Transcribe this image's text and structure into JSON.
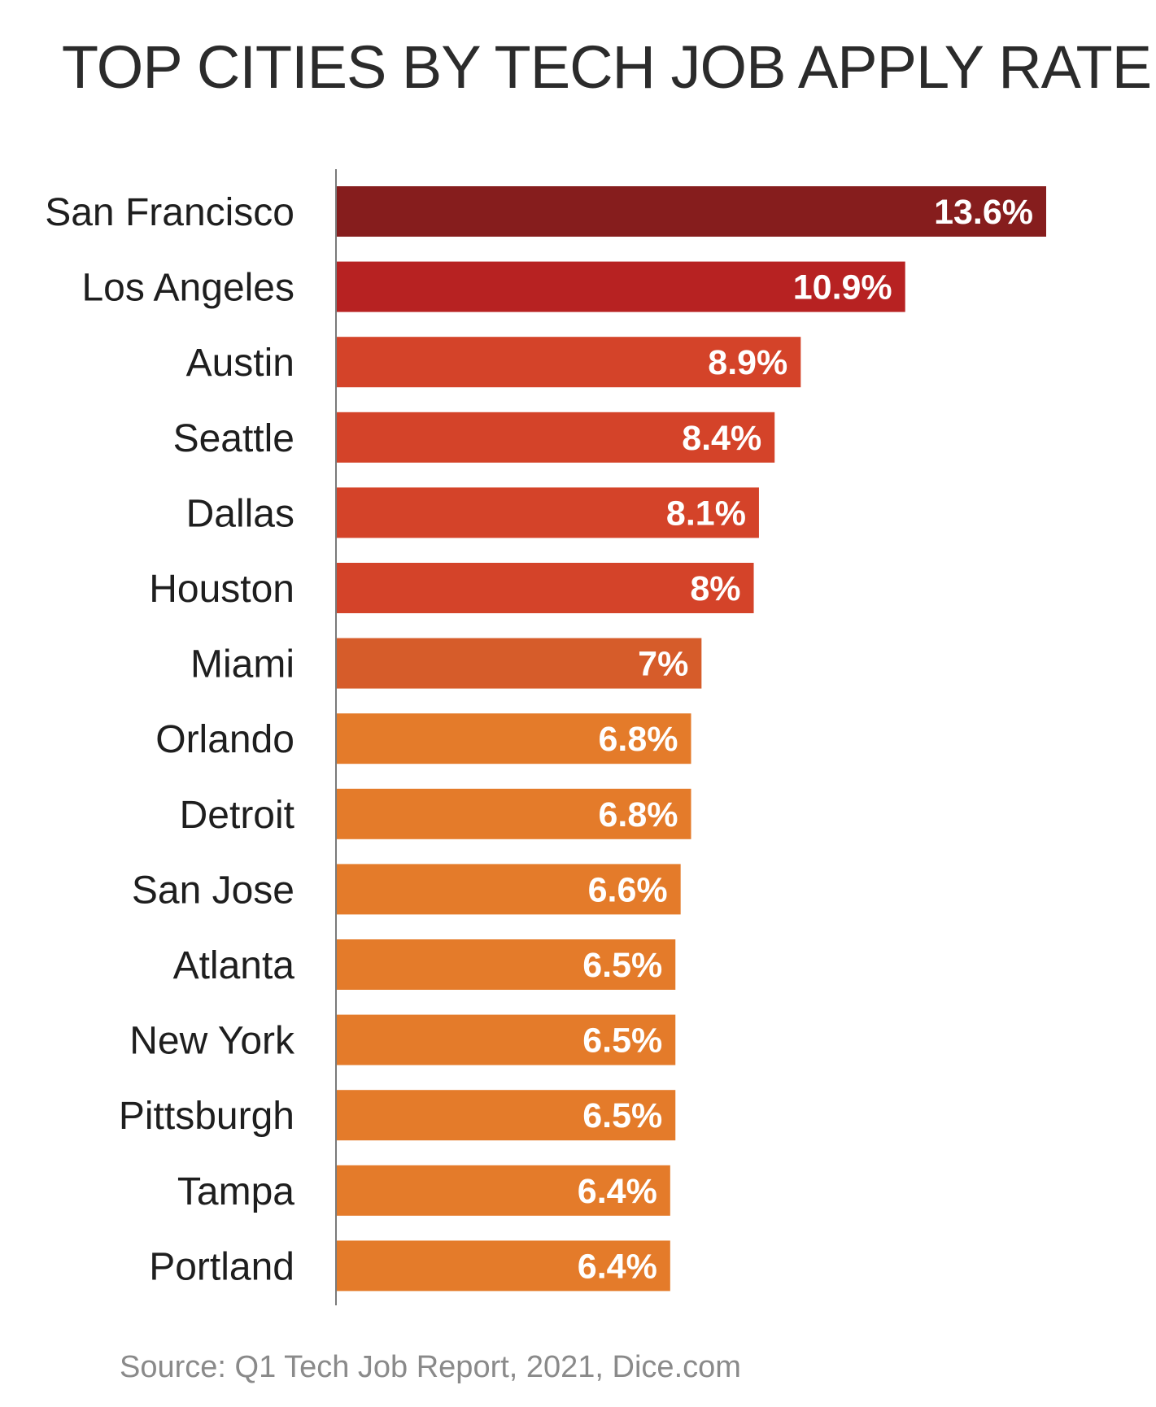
{
  "chart_data": {
    "type": "bar",
    "orientation": "horizontal",
    "title": "TOP CITIES BY TECH JOB APPLY RATE",
    "source": "Source: Q1 Tech Job Report, 2021, Dice.com",
    "categories": [
      "San Francisco",
      "Los Angeles",
      "Austin",
      "Seattle",
      "Dallas",
      "Houston",
      "Miami",
      "Orlando",
      "Detroit",
      "San Jose",
      "Atlanta",
      "New York",
      "Pittsburgh",
      "Tampa",
      "Portland"
    ],
    "values": [
      13.6,
      10.9,
      8.9,
      8.4,
      8.1,
      8,
      7,
      6.8,
      6.8,
      6.6,
      6.5,
      6.5,
      6.5,
      6.4,
      6.4
    ],
    "value_labels": [
      "13.6%",
      "10.9%",
      "8.9%",
      "8.4%",
      "8.1%",
      "8%",
      "7%",
      "6.8%",
      "6.8%",
      "6.6%",
      "6.5%",
      "6.5%",
      "6.5%",
      "6.4%",
      "6.4%"
    ],
    "colors": [
      "#861d1d",
      "#b72222",
      "#d44329",
      "#d44329",
      "#d44329",
      "#d44329",
      "#d65c2a",
      "#e47b2a",
      "#e47b2a",
      "#e47b2a",
      "#e47b2a",
      "#e47b2a",
      "#e47b2a",
      "#e47b2a",
      "#e47b2a"
    ],
    "axis_color": "#7a7a7a",
    "label_color": "#1e1e1e",
    "value_label_color": "#ffffff",
    "xlim": [
      0,
      13.6
    ],
    "grid": false,
    "legend": "none"
  }
}
